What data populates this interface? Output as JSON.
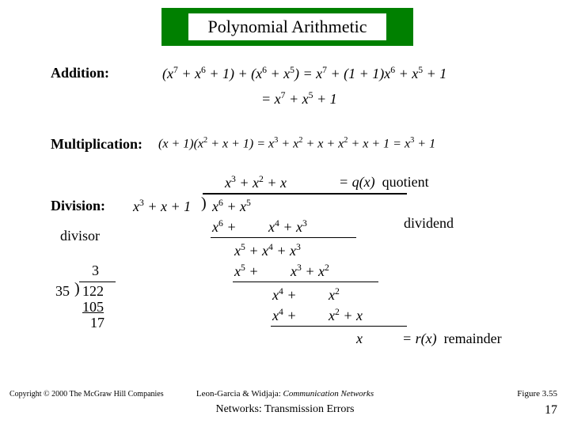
{
  "title": "Polynomial Arithmetic",
  "labels": {
    "addition": "Addition:",
    "multiplication": "Multiplication:",
    "division": "Division:",
    "divisor": "divisor",
    "quotient": "= q(x)  quotient",
    "dividend": "dividend",
    "remainder": "= r(x)  remainder"
  },
  "addition": {
    "line1_html": "(<i>x</i><sup>7</sup> + <i>x</i><sup>6</sup> + 1) + (<i>x</i><sup>6</sup> + <i>x</i><sup>5</sup>) = <i>x</i><sup>7</sup> + (1 + 1)<i>x</i><sup>6</sup> + <i>x</i><sup>5</sup> + 1",
    "line2_html": "= <i>x</i><sup>7</sup> + <i>x</i><sup>5</sup> + 1"
  },
  "multiplication": {
    "line_html": "(<i>x</i> + 1)(<i>x</i><sup>2</sup> + <i>x</i> + 1) = <i>x</i><sup>3</sup> + <i>x</i><sup>2</sup> + <i>x</i> + <i>x</i><sup>2</sup> + <i>x</i> + 1 = <i>x</i><sup>3</sup> + 1"
  },
  "poly_division": {
    "quotient_html": "<i>x</i><sup>3</sup> + <i>x</i><sup>2</sup> + <i>x</i>",
    "divisor_html": "<i>x</i><sup>3</sup> + <i>x</i> + 1",
    "paren": ")",
    "dividend_html": "<i>x</i><sup>6</sup> + <i>x</i><sup>5</sup>",
    "step1_html": "<i>x</i><sup>6</sup> + &nbsp;&nbsp;&nbsp;&nbsp;&nbsp;&nbsp;&nbsp;&nbsp;<i>x</i><sup>4</sup> + <i>x</i><sup>3</sup>",
    "step2_html": "<i>x</i><sup>5</sup> + <i>x</i><sup>4</sup> + <i>x</i><sup>3</sup>",
    "step3_html": "<i>x</i><sup>5</sup> + &nbsp;&nbsp;&nbsp;&nbsp;&nbsp;&nbsp;&nbsp;&nbsp;<i>x</i><sup>3</sup> + <i>x</i><sup>2</sup>",
    "step4_html": "<i>x</i><sup>4</sup> + &nbsp;&nbsp;&nbsp;&nbsp;&nbsp;&nbsp;&nbsp;&nbsp;<i>x</i><sup>2</sup>",
    "step5_html": "<i>x</i><sup>4</sup> + &nbsp;&nbsp;&nbsp;&nbsp;&nbsp;&nbsp;&nbsp;&nbsp;<i>x</i><sup>2</sup> + <i>x</i>",
    "remainder_html": "<i>x</i>"
  },
  "num_division": {
    "quotient": "3",
    "divisor": "35",
    "paren": ")",
    "dividend": "122",
    "step1": "105",
    "remainder": "17"
  },
  "footer": {
    "copyright": "Copyright © 2000 The McGraw Hill Companies",
    "credit_author": "Leon-Garcia & Widjaja:",
    "credit_book": "Communication Networks",
    "figure": "Figure 3.55",
    "title": "Networks: Transmission Errors",
    "page": "17"
  },
  "colors": {
    "title_bg": "#008000",
    "text": "#000000",
    "page_bg": "#ffffff"
  }
}
